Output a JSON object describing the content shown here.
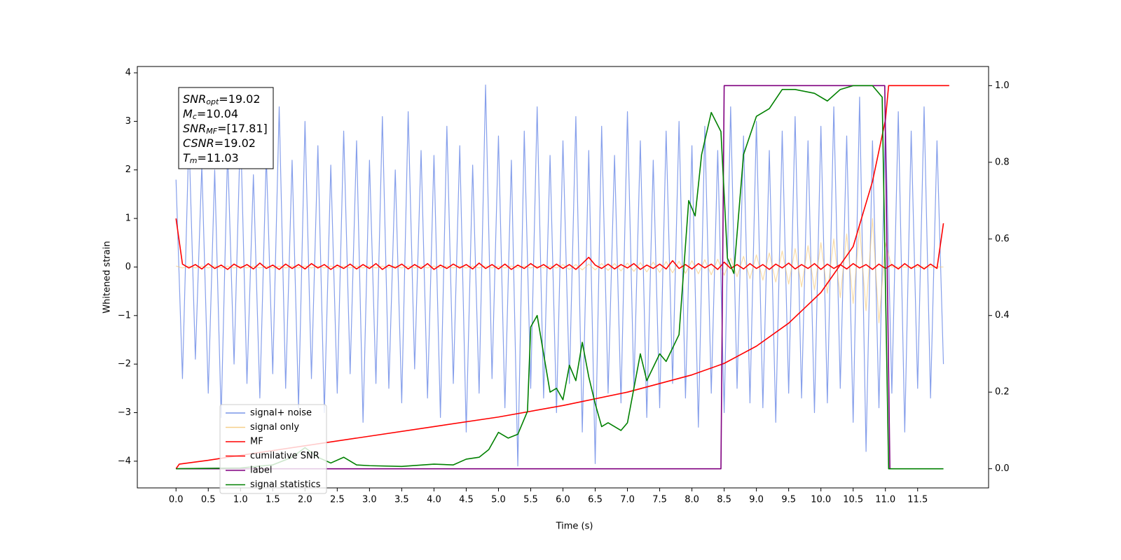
{
  "chart_data": {
    "type": "line",
    "xlabel": "Time (s)",
    "ylabel": "Whitened strain",
    "xlim": [
      -0.6,
      12.6
    ],
    "ylim": [
      -4.55,
      4.13
    ],
    "y2lim": [
      -0.05,
      1.05
    ],
    "xticks": [
      {
        "value": 0,
        "label": "0.0"
      },
      0.5,
      {
        "value": 1,
        "label": "1.0"
      },
      1.5,
      {
        "value": 2,
        "label": "2.0"
      },
      2.5,
      {
        "value": 3,
        "label": "3.0"
      },
      3.5,
      {
        "value": 4,
        "label": "4.0"
      },
      4.5,
      {
        "value": 5,
        "label": "5.0"
      },
      5.5,
      {
        "value": 6,
        "label": "6.0"
      },
      6.5,
      {
        "value": 7,
        "label": "7.0"
      },
      7.5,
      {
        "value": 8,
        "label": "8.0"
      },
      8.5,
      {
        "value": 9,
        "label": "9.0"
      },
      9.5,
      {
        "value": 10,
        "label": "10.0"
      },
      10.5,
      {
        "value": 11,
        "label": "11.0"
      },
      11.5
    ],
    "yticks": [
      {
        "value": -4,
        "label": "−4"
      },
      {
        "value": -3,
        "label": "−3"
      },
      {
        "value": -2,
        "label": "−2"
      },
      {
        "value": -1,
        "label": "−1"
      },
      0,
      1,
      2,
      3,
      4
    ],
    "y2ticks": [
      {
        "value": 0,
        "label": "0.0"
      },
      0.2,
      0.4,
      0.6,
      0.8,
      {
        "value": 1,
        "label": "1.0"
      }
    ],
    "x": [
      0.0,
      0.1,
      0.2,
      0.3,
      0.4,
      0.5,
      0.6,
      0.7,
      0.8,
      0.9,
      1.0,
      1.1,
      1.2,
      1.3,
      1.4,
      1.5,
      1.6,
      1.7,
      1.8,
      1.9,
      2.0,
      2.1,
      2.2,
      2.3,
      2.4,
      2.5,
      2.6,
      2.7,
      2.8,
      2.9,
      3.0,
      3.1,
      3.2,
      3.3,
      3.4,
      3.5,
      3.6,
      3.7,
      3.8,
      3.9,
      4.0,
      4.1,
      4.2,
      4.3,
      4.4,
      4.5,
      4.6,
      4.7,
      4.8,
      4.9,
      5.0,
      5.1,
      5.2,
      5.3,
      5.4,
      5.5,
      5.6,
      5.7,
      5.8,
      5.9,
      6.0,
      6.1,
      6.2,
      6.3,
      6.4,
      6.5,
      6.6,
      6.7,
      6.8,
      6.9,
      7.0,
      7.1,
      7.2,
      7.3,
      7.4,
      7.5,
      7.6,
      7.7,
      7.8,
      7.9,
      8.0,
      8.1,
      8.2,
      8.3,
      8.4,
      8.5,
      8.6,
      8.7,
      8.8,
      8.9,
      9.0,
      9.1,
      9.2,
      9.3,
      9.4,
      9.5,
      9.6,
      9.7,
      9.8,
      9.9,
      10.0,
      10.1,
      10.2,
      10.3,
      10.4,
      10.5,
      10.6,
      10.7,
      10.8,
      10.9,
      11.0,
      11.1,
      11.2,
      11.3,
      11.4,
      11.5,
      11.6,
      11.7,
      11.8,
      11.9
    ],
    "series": [
      {
        "name": "signal+ noise",
        "color": "#7995e9",
        "values": [
          1.8,
          -2.3,
          2.7,
          -1.9,
          2.1,
          -2.6,
          2.0,
          -3.1,
          2.4,
          -2.0,
          2.9,
          -2.4,
          1.9,
          -2.7,
          2.3,
          -2.2,
          3.3,
          -2.5,
          2.2,
          -2.9,
          3.0,
          -2.3,
          2.5,
          -3.0,
          2.1,
          -2.6,
          2.8,
          -2.2,
          2.6,
          -3.2,
          2.2,
          -2.4,
          3.1,
          -2.5,
          2.0,
          -2.8,
          3.2,
          -2.1,
          2.4,
          -2.7,
          2.3,
          -3.1,
          2.9,
          -2.4,
          2.5,
          -3.4,
          2.1,
          -2.6,
          3.75,
          -2.3,
          2.7,
          -2.9,
          2.2,
          -4.1,
          2.8,
          -2.5,
          3.3,
          -2.7,
          2.3,
          -3.0,
          2.6,
          -2.4,
          3.1,
          -3.4,
          2.4,
          -4.05,
          2.9,
          -2.6,
          2.3,
          -2.8,
          3.2,
          -2.5,
          2.6,
          -3.1,
          2.2,
          -2.9,
          2.8,
          -2.4,
          3.0,
          -2.7,
          2.5,
          -3.3,
          2.9,
          -2.6,
          2.4,
          -3.0,
          3.3,
          -2.5,
          2.7,
          -2.8,
          3.0,
          -2.9,
          2.4,
          -3.2,
          2.8,
          -2.6,
          3.1,
          -2.7,
          2.6,
          -3.0,
          2.9,
          -2.8,
          3.3,
          -2.5,
          2.7,
          -3.2,
          3.5,
          -3.8,
          2.6,
          -2.9,
          3.0,
          -2.6,
          3.2,
          -3.4,
          2.8,
          -2.5,
          3.3,
          -2.7,
          2.6,
          -2.0
        ]
      },
      {
        "name": "signal only",
        "color": "#f5c46e",
        "values": [
          0.02,
          -0.02,
          0.02,
          -0.02,
          0.02,
          -0.02,
          0.02,
          -0.02,
          0.02,
          -0.02,
          0.02,
          -0.02,
          0.02,
          -0.02,
          0.02,
          -0.02,
          0.02,
          -0.02,
          0.02,
          -0.02,
          0.02,
          -0.02,
          0.02,
          -0.02,
          0.02,
          -0.02,
          0.02,
          -0.02,
          0.02,
          -0.02,
          0.02,
          -0.02,
          0.02,
          -0.02,
          0.02,
          -0.02,
          0.02,
          -0.02,
          0.02,
          -0.02,
          0.02,
          -0.02,
          0.02,
          -0.02,
          0.02,
          -0.02,
          0.02,
          -0.02,
          0.02,
          -0.02,
          0.02,
          -0.02,
          0.02,
          -0.02,
          0.02,
          -0.02,
          0.02,
          -0.02,
          0.02,
          -0.02,
          0.05,
          -0.05,
          0.05,
          -0.06,
          0.06,
          -0.06,
          0.07,
          -0.07,
          0.07,
          -0.08,
          0.08,
          -0.09,
          0.09,
          -0.1,
          0.1,
          -0.11,
          0.11,
          -0.12,
          0.12,
          -0.13,
          0.13,
          -0.14,
          0.15,
          -0.16,
          0.16,
          -0.17,
          0.18,
          -0.2,
          0.22,
          -0.24,
          0.25,
          -0.27,
          0.29,
          -0.31,
          0.33,
          -0.35,
          0.38,
          -0.41,
          0.44,
          -0.47,
          0.5,
          -0.54,
          0.58,
          -0.63,
          0.68,
          -0.75,
          0.82,
          -0.9,
          1.0,
          -1.15,
          0.5,
          0,
          0,
          0,
          0,
          0,
          0,
          0,
          0,
          0
        ]
      },
      {
        "name": "MF",
        "color": "#ff0000",
        "values": [
          1.0,
          0.06,
          -0.02,
          0.05,
          -0.04,
          0.07,
          -0.03,
          0.04,
          -0.05,
          0.06,
          -0.02,
          0.05,
          -0.04,
          0.08,
          -0.03,
          0.04,
          -0.05,
          0.06,
          -0.03,
          0.05,
          -0.04,
          0.07,
          -0.02,
          0.05,
          -0.05,
          0.04,
          -0.03,
          0.06,
          -0.04,
          0.05,
          -0.03,
          0.07,
          -0.05,
          0.04,
          -0.02,
          0.06,
          -0.04,
          0.05,
          -0.03,
          0.07,
          -0.05,
          0.04,
          -0.03,
          0.06,
          -0.02,
          0.05,
          -0.04,
          0.08,
          -0.03,
          0.05,
          -0.04,
          0.06,
          -0.05,
          0.04,
          -0.03,
          0.07,
          -0.02,
          0.05,
          -0.04,
          0.06,
          -0.03,
          0.05,
          -0.05,
          0.07,
          0.2,
          0.04,
          -0.03,
          0.06,
          -0.04,
          0.05,
          -0.02,
          0.07,
          -0.05,
          0.04,
          -0.03,
          0.06,
          -0.04,
          0.13,
          -0.03,
          0.05,
          -0.04,
          0.07,
          -0.02,
          0.06,
          -0.05,
          0.1,
          -0.03,
          0.05,
          -0.04,
          0.07,
          -0.03,
          0.05,
          -0.05,
          0.06,
          -0.02,
          0.08,
          -0.04,
          0.05,
          -0.03,
          0.07,
          -0.05,
          0.06,
          -0.03,
          0.05,
          -0.04,
          0.07,
          -0.02,
          0.05,
          -0.05,
          0.06,
          -0.03,
          0.05,
          -0.04,
          0.07,
          -0.03,
          0.05,
          -0.04,
          0.06,
          -0.03,
          0.9
        ]
      },
      {
        "name": "cumilative SNR",
        "color": "#ff0000",
        "axis": "y2",
        "x": [
          0,
          0.05,
          0.5,
          1,
          2,
          3,
          4,
          5,
          6,
          7,
          8,
          8.5,
          9,
          9.5,
          10,
          10.5,
          10.8,
          11,
          11.05,
          11.99
        ],
        "values": [
          0,
          0.012,
          0.022,
          0.035,
          0.06,
          0.085,
          0.11,
          0.135,
          0.165,
          0.2,
          0.245,
          0.275,
          0.32,
          0.38,
          0.46,
          0.58,
          0.75,
          0.91,
          1.0,
          1.0
        ]
      },
      {
        "name": "label",
        "color": "#800080",
        "axis": "y2",
        "x": [
          0,
          8.45,
          8.5,
          10.99,
          11.07,
          11.1
        ],
        "values": [
          0,
          0,
          1,
          1,
          0,
          0
        ]
      },
      {
        "name": "signal statistics",
        "color": "#008000",
        "axis": "y2",
        "x": [
          0,
          0.5,
          1,
          1.5,
          1.8,
          2,
          2.2,
          2.4,
          2.6,
          2.8,
          3,
          3.5,
          4,
          4.3,
          4.5,
          4.7,
          4.85,
          5,
          5.15,
          5.3,
          5.45,
          5.5,
          5.6,
          5.7,
          5.8,
          5.9,
          6,
          6.1,
          6.2,
          6.3,
          6.4,
          6.5,
          6.6,
          6.7,
          6.9,
          7,
          7.2,
          7.3,
          7.5,
          7.6,
          7.8,
          7.95,
          8.05,
          8.15,
          8.3,
          8.45,
          8.55,
          8.65,
          8.8,
          9,
          9.2,
          9.4,
          9.6,
          9.9,
          10.1,
          10.3,
          10.5,
          10.8,
          10.95,
          11.05,
          11.9
        ],
        "values": [
          0,
          0.001,
          0.002,
          0.01,
          0.03,
          0.055,
          0.03,
          0.015,
          0.03,
          0.01,
          0.008,
          0.006,
          0.012,
          0.01,
          0.025,
          0.03,
          0.05,
          0.095,
          0.08,
          0.09,
          0.15,
          0.37,
          0.4,
          0.3,
          0.2,
          0.21,
          0.18,
          0.27,
          0.23,
          0.33,
          0.24,
          0.17,
          0.11,
          0.12,
          0.1,
          0.12,
          0.3,
          0.23,
          0.3,
          0.28,
          0.35,
          0.7,
          0.66,
          0.82,
          0.93,
          0.88,
          0.55,
          0.51,
          0.82,
          0.92,
          0.94,
          0.99,
          0.99,
          0.98,
          0.96,
          0.99,
          1.0,
          1.0,
          0.97,
          0,
          0
        ]
      }
    ],
    "annotation": [
      {
        "symbol": "SNR",
        "subscript": "opt",
        "text": "=19.02"
      },
      {
        "symbol": "M",
        "subscript": "c",
        "text": "=10.04"
      },
      {
        "symbol": "SNR",
        "subscript": "MF",
        "text": "=[17.81]"
      },
      {
        "symbol": "CSNR",
        "text": "=19.02"
      },
      {
        "symbol": "T",
        "subscript": "m",
        "text": "=11.03"
      }
    ],
    "legend": "lower left"
  }
}
